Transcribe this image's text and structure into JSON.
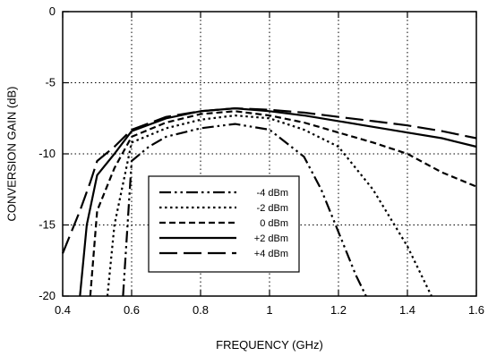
{
  "chart_data": {
    "type": "line",
    "title": "",
    "xlabel": "FREQUENCY (GHz)",
    "ylabel": "CONVERSION GAIN (dB)",
    "xlim": [
      0.4,
      1.6
    ],
    "ylim": [
      -20,
      0
    ],
    "grid": "dotted",
    "legend_position": "lower-center",
    "x_ticks": [
      "0.4",
      "0.6",
      "0.8",
      "1",
      "1.2",
      "1.4",
      "1.6"
    ],
    "y_ticks": [
      "0",
      "-5",
      "-10",
      "-15",
      "-20"
    ],
    "series": [
      {
        "name": "-4 dBm",
        "dash": "dash-dot-dot",
        "points": [
          [
            0.575,
            -20
          ],
          [
            0.6,
            -10.5
          ],
          [
            0.65,
            -9.5
          ],
          [
            0.7,
            -8.8
          ],
          [
            0.8,
            -8.2
          ],
          [
            0.9,
            -7.9
          ],
          [
            1.0,
            -8.3
          ],
          [
            1.1,
            -10.2
          ],
          [
            1.15,
            -12.5
          ],
          [
            1.2,
            -15.5
          ],
          [
            1.25,
            -18.5
          ],
          [
            1.28,
            -20
          ]
        ]
      },
      {
        "name": "-2 dBm",
        "dash": "dotted",
        "points": [
          [
            0.53,
            -20
          ],
          [
            0.55,
            -15
          ],
          [
            0.6,
            -9.2
          ],
          [
            0.7,
            -8.2
          ],
          [
            0.8,
            -7.6
          ],
          [
            0.9,
            -7.3
          ],
          [
            1.0,
            -7.5
          ],
          [
            1.1,
            -8.3
          ],
          [
            1.2,
            -9.5
          ],
          [
            1.3,
            -12.5
          ],
          [
            1.4,
            -16.5
          ],
          [
            1.47,
            -20
          ]
        ]
      },
      {
        "name": "0 dBm",
        "dash": "dashed",
        "points": [
          [
            0.48,
            -20
          ],
          [
            0.5,
            -14
          ],
          [
            0.55,
            -11
          ],
          [
            0.6,
            -8.8
          ],
          [
            0.7,
            -7.8
          ],
          [
            0.8,
            -7.2
          ],
          [
            0.9,
            -7
          ],
          [
            1.0,
            -7.3
          ],
          [
            1.1,
            -7.8
          ],
          [
            1.2,
            -8.5
          ],
          [
            1.3,
            -9.2
          ],
          [
            1.4,
            -10
          ],
          [
            1.5,
            -11.3
          ],
          [
            1.6,
            -12.3
          ]
        ]
      },
      {
        "name": "+2 dBm",
        "dash": "solid",
        "points": [
          [
            0.45,
            -20
          ],
          [
            0.47,
            -15
          ],
          [
            0.5,
            -11.5
          ],
          [
            0.55,
            -10
          ],
          [
            0.6,
            -8.4
          ],
          [
            0.7,
            -7.5
          ],
          [
            0.8,
            -7
          ],
          [
            0.9,
            -6.8
          ],
          [
            1.0,
            -7
          ],
          [
            1.1,
            -7.3
          ],
          [
            1.2,
            -7.7
          ],
          [
            1.3,
            -8.1
          ],
          [
            1.4,
            -8.5
          ],
          [
            1.5,
            -8.9
          ],
          [
            1.6,
            -9.5
          ]
        ]
      },
      {
        "name": "+4 dBm",
        "dash": "long-dash",
        "points": [
          [
            0.4,
            -17
          ],
          [
            0.45,
            -14
          ],
          [
            0.48,
            -12
          ],
          [
            0.5,
            -10.5
          ],
          [
            0.55,
            -9.5
          ],
          [
            0.6,
            -8.3
          ],
          [
            0.7,
            -7.4
          ],
          [
            0.8,
            -7
          ],
          [
            0.9,
            -6.8
          ],
          [
            1.0,
            -6.9
          ],
          [
            1.1,
            -7.1
          ],
          [
            1.2,
            -7.4
          ],
          [
            1.3,
            -7.7
          ],
          [
            1.4,
            -8
          ],
          [
            1.5,
            -8.4
          ],
          [
            1.6,
            -8.9
          ]
        ]
      }
    ]
  }
}
